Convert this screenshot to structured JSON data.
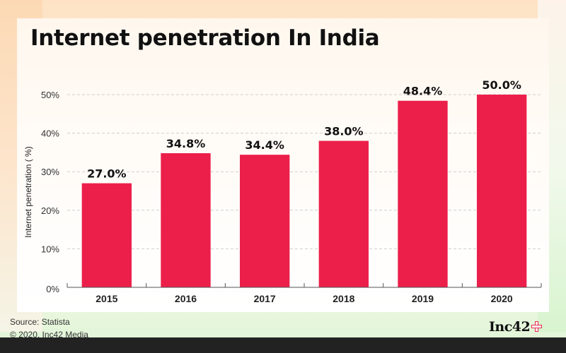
{
  "page": {
    "source_line": "Source: Statista",
    "copyright_line": "© 2020, Inc42 Media",
    "logo_text": "Inc42",
    "logo_icon": "plus-icon"
  },
  "chart_data": {
    "type": "bar",
    "title": "Internet penetration In India",
    "xlabel": "",
    "ylabel": "Internet penetration ( %)",
    "categories": [
      "2015",
      "2016",
      "2017",
      "2018",
      "2019",
      "2020"
    ],
    "values": [
      27.0,
      34.8,
      34.4,
      38.0,
      48.4,
      50.0
    ],
    "data_labels": [
      "27.0%",
      "34.8%",
      "34.4%",
      "38.0%",
      "48.4%",
      "50.0%"
    ],
    "ylim": [
      0,
      50
    ],
    "yticks": [
      0,
      10,
      20,
      30,
      40,
      50
    ],
    "ytick_labels": [
      "0%",
      "10%",
      "20%",
      "30%",
      "40%",
      "50%"
    ],
    "grid": true,
    "grid_style": "dashed-horizontal",
    "bar_color": "#ec1f4b",
    "legend": "none"
  }
}
